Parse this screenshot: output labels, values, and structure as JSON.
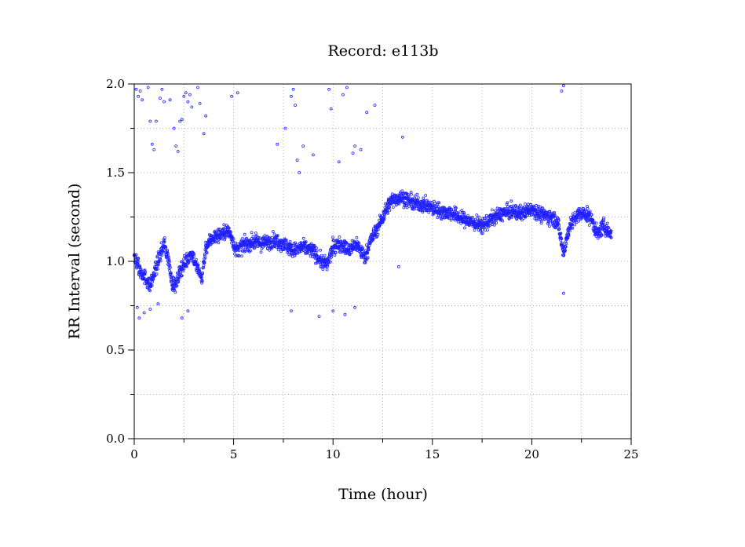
{
  "chart_data": {
    "type": "scatter",
    "title": "Record:  e113b",
    "xlabel": "Time (hour)",
    "ylabel": "RR Interval (second)",
    "xlim": [
      0,
      25
    ],
    "ylim": [
      0.0,
      2.0
    ],
    "x_ticks": [
      "0",
      "5",
      "10",
      "15",
      "20",
      "25"
    ],
    "y_ticks": [
      "0.0",
      "0.5",
      "1.0",
      "1.5",
      "2.0"
    ],
    "grid": true,
    "marker_color": "#1f1fff",
    "series": [
      {
        "profile": [
          [
            0.0,
            1.02
          ],
          [
            0.3,
            0.95
          ],
          [
            0.6,
            0.9
          ],
          [
            0.8,
            0.86
          ],
          [
            1.0,
            0.93
          ],
          [
            1.2,
            1.0
          ],
          [
            1.5,
            1.1
          ],
          [
            1.7,
            1.02
          ],
          [
            1.9,
            0.88
          ],
          [
            2.1,
            0.86
          ],
          [
            2.3,
            0.95
          ],
          [
            2.6,
            1.0
          ],
          [
            2.9,
            1.05
          ],
          [
            3.1,
            0.98
          ],
          [
            3.4,
            0.9
          ],
          [
            3.6,
            1.08
          ],
          [
            3.9,
            1.13
          ],
          [
            4.3,
            1.15
          ],
          [
            4.7,
            1.17
          ],
          [
            4.9,
            1.14
          ],
          [
            5.1,
            1.06
          ],
          [
            5.5,
            1.09
          ],
          [
            6.0,
            1.11
          ],
          [
            6.5,
            1.1
          ],
          [
            7.0,
            1.12
          ],
          [
            7.5,
            1.1
          ],
          [
            8.0,
            1.06
          ],
          [
            8.5,
            1.08
          ],
          [
            9.0,
            1.06
          ],
          [
            9.4,
            1.0
          ],
          [
            9.7,
            0.98
          ],
          [
            10.0,
            1.08
          ],
          [
            10.4,
            1.1
          ],
          [
            10.8,
            1.06
          ],
          [
            11.2,
            1.1
          ],
          [
            11.6,
            1.02
          ],
          [
            11.9,
            1.12
          ],
          [
            12.3,
            1.2
          ],
          [
            12.7,
            1.3
          ],
          [
            13.0,
            1.35
          ],
          [
            13.5,
            1.36
          ],
          [
            14.0,
            1.33
          ],
          [
            14.5,
            1.32
          ],
          [
            15.0,
            1.3
          ],
          [
            15.5,
            1.28
          ],
          [
            16.0,
            1.27
          ],
          [
            16.5,
            1.24
          ],
          [
            17.0,
            1.22
          ],
          [
            17.5,
            1.2
          ],
          [
            18.0,
            1.24
          ],
          [
            18.5,
            1.27
          ],
          [
            19.0,
            1.28
          ],
          [
            19.5,
            1.27
          ],
          [
            20.0,
            1.3
          ],
          [
            20.5,
            1.26
          ],
          [
            21.0,
            1.25
          ],
          [
            21.3,
            1.22
          ],
          [
            21.6,
            1.05
          ],
          [
            21.9,
            1.2
          ],
          [
            22.3,
            1.26
          ],
          [
            22.7,
            1.27
          ],
          [
            23.0,
            1.24
          ],
          [
            23.3,
            1.15
          ],
          [
            23.6,
            1.2
          ],
          [
            24.0,
            1.15
          ]
        ],
        "outliers": [
          [
            0.1,
            1.97
          ],
          [
            0.2,
            1.93
          ],
          [
            0.3,
            1.96
          ],
          [
            0.4,
            1.91
          ],
          [
            0.7,
            1.98
          ],
          [
            0.8,
            1.79
          ],
          [
            0.9,
            1.66
          ],
          [
            1.0,
            1.63
          ],
          [
            1.1,
            1.79
          ],
          [
            1.3,
            1.92
          ],
          [
            1.4,
            1.97
          ],
          [
            1.5,
            1.9
          ],
          [
            1.8,
            1.91
          ],
          [
            2.0,
            1.75
          ],
          [
            2.1,
            1.65
          ],
          [
            2.2,
            1.62
          ],
          [
            2.3,
            1.79
          ],
          [
            2.4,
            1.8
          ],
          [
            2.5,
            1.93
          ],
          [
            2.6,
            1.95
          ],
          [
            2.7,
            1.9
          ],
          [
            2.8,
            1.94
          ],
          [
            2.9,
            1.87
          ],
          [
            3.2,
            1.98
          ],
          [
            3.3,
            1.89
          ],
          [
            3.5,
            1.72
          ],
          [
            3.6,
            1.82
          ],
          [
            4.9,
            1.93
          ],
          [
            5.2,
            1.95
          ],
          [
            7.2,
            1.66
          ],
          [
            7.6,
            1.75
          ],
          [
            7.9,
            1.93
          ],
          [
            8.0,
            1.97
          ],
          [
            8.1,
            1.88
          ],
          [
            8.2,
            1.57
          ],
          [
            8.3,
            1.5
          ],
          [
            8.5,
            1.65
          ],
          [
            9.0,
            1.6
          ],
          [
            9.8,
            1.97
          ],
          [
            9.9,
            1.86
          ],
          [
            10.3,
            1.56
          ],
          [
            10.5,
            1.94
          ],
          [
            10.7,
            1.98
          ],
          [
            11.0,
            1.61
          ],
          [
            11.1,
            1.65
          ],
          [
            11.4,
            1.63
          ],
          [
            11.7,
            1.84
          ],
          [
            12.1,
            1.88
          ],
          [
            13.5,
            1.7
          ],
          [
            21.5,
            1.96
          ],
          [
            21.6,
            1.99
          ],
          [
            0.15,
            0.74
          ],
          [
            0.25,
            0.68
          ],
          [
            0.5,
            0.71
          ],
          [
            0.8,
            0.73
          ],
          [
            1.2,
            0.76
          ],
          [
            2.4,
            0.68
          ],
          [
            2.7,
            0.72
          ],
          [
            7.9,
            0.72
          ],
          [
            9.3,
            0.69
          ],
          [
            10.0,
            0.72
          ],
          [
            10.6,
            0.7
          ],
          [
            11.1,
            0.74
          ],
          [
            13.3,
            0.97
          ],
          [
            21.6,
            0.82
          ]
        ]
      }
    ]
  }
}
